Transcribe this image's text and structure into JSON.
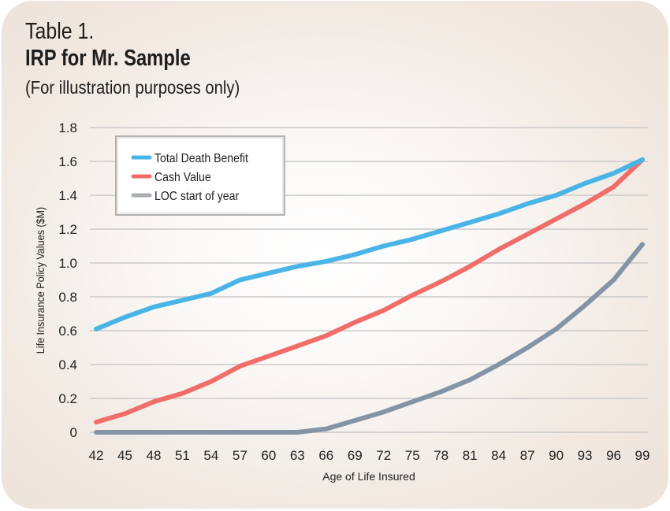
{
  "header": {
    "title": "Table 1.",
    "subtitle": "IRP for Mr. Sample",
    "note": "(For illustration purposes only)"
  },
  "chart_data": {
    "type": "line",
    "title": "IRP for Mr. Sample",
    "xlabel": "Age of Life Insured",
    "ylabel": "Life Insurance Policy Values ($M)",
    "x": [
      42,
      45,
      48,
      51,
      54,
      57,
      60,
      63,
      66,
      69,
      72,
      75,
      78,
      81,
      84,
      87,
      90,
      93,
      96,
      99
    ],
    "x_tick_labels": [
      "42",
      "45",
      "48",
      "51",
      "54",
      "57",
      "60",
      "63",
      "66",
      "69",
      "72",
      "75",
      "78",
      "81",
      "84",
      "87",
      "90",
      "93",
      "96",
      "99"
    ],
    "y_tick_labels": [
      "0",
      "0.2",
      "0.4",
      "0.6",
      "0.8",
      "1.0",
      "1.2",
      "1.4",
      "1.6",
      "1.8"
    ],
    "y_ticks": [
      0,
      0.2,
      0.4,
      0.6,
      0.8,
      1.0,
      1.2,
      1.4,
      1.6,
      1.8
    ],
    "xlim": [
      42,
      99
    ],
    "ylim": [
      0,
      1.8
    ],
    "grid": "horizontal",
    "legend_position": "top-left",
    "series": [
      {
        "name": "Total Death Benefit",
        "color": "#4ab4e6",
        "values": [
          0.61,
          0.68,
          0.74,
          0.78,
          0.82,
          0.9,
          0.94,
          0.98,
          1.01,
          1.05,
          1.1,
          1.14,
          1.19,
          1.24,
          1.29,
          1.35,
          1.4,
          1.47,
          1.53,
          1.61
        ]
      },
      {
        "name": "Cash Value",
        "color": "#f06e6a",
        "values": [
          0.06,
          0.11,
          0.18,
          0.23,
          0.3,
          0.39,
          0.45,
          0.51,
          0.57,
          0.65,
          0.72,
          0.81,
          0.89,
          0.98,
          1.08,
          1.17,
          1.26,
          1.35,
          1.45,
          1.61
        ]
      },
      {
        "name": "LOC start of year",
        "color": "#8394a6",
        "legend_color": "#a9acb0",
        "values": [
          0,
          0,
          0,
          0,
          0,
          0,
          0,
          0,
          0.02,
          0.07,
          0.12,
          0.18,
          0.24,
          0.31,
          0.4,
          0.5,
          0.61,
          0.75,
          0.9,
          1.11
        ]
      }
    ]
  }
}
